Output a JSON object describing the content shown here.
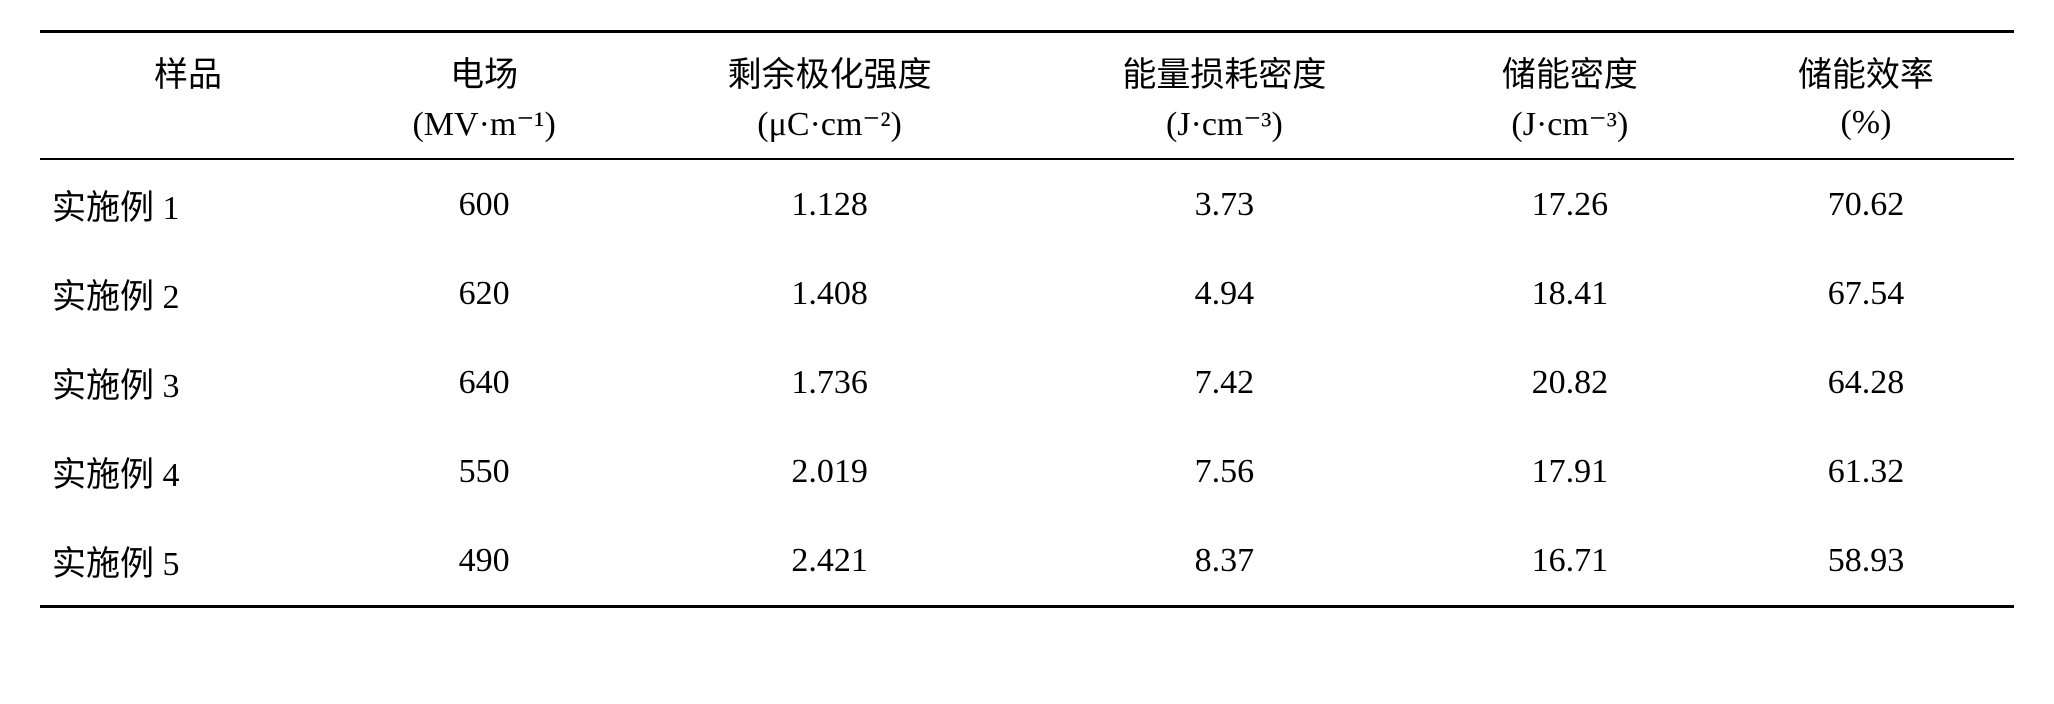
{
  "table": {
    "columns": [
      {
        "header": "样品",
        "unit": ""
      },
      {
        "header": "电场",
        "unit": "(MV·m⁻¹)"
      },
      {
        "header": "剩余极化强度",
        "unit": "(μC·cm⁻²)"
      },
      {
        "header": "能量损耗密度",
        "unit": "(J·cm⁻³)"
      },
      {
        "header": "储能密度",
        "unit": "(J·cm⁻³)"
      },
      {
        "header": "储能效率",
        "unit": "(%)"
      }
    ],
    "rows": [
      {
        "sample": "实施例 1",
        "field": "600",
        "polarization": "1.128",
        "loss": "3.73",
        "density": "17.26",
        "efficiency": "70.62"
      },
      {
        "sample": "实施例 2",
        "field": "620",
        "polarization": "1.408",
        "loss": "4.94",
        "density": "18.41",
        "efficiency": "67.54"
      },
      {
        "sample": "实施例 3",
        "field": "640",
        "polarization": "1.736",
        "loss": "7.42",
        "density": "20.82",
        "efficiency": "64.28"
      },
      {
        "sample": "实施例 4",
        "field": "550",
        "polarization": "2.019",
        "loss": "7.56",
        "density": "17.91",
        "efficiency": "61.32"
      },
      {
        "sample": "实施例 5",
        "field": "490",
        "polarization": "2.421",
        "loss": "8.37",
        "density": "16.71",
        "efficiency": "58.93"
      }
    ],
    "style": {
      "font_size_pt": 26,
      "text_color": "#000000",
      "background_color": "#ffffff",
      "border_color": "#000000",
      "top_border_width": 3,
      "header_bottom_border_width": 2,
      "bottom_border_width": 3,
      "column_alignment": [
        "left",
        "center",
        "center",
        "center",
        "center",
        "center"
      ]
    }
  }
}
